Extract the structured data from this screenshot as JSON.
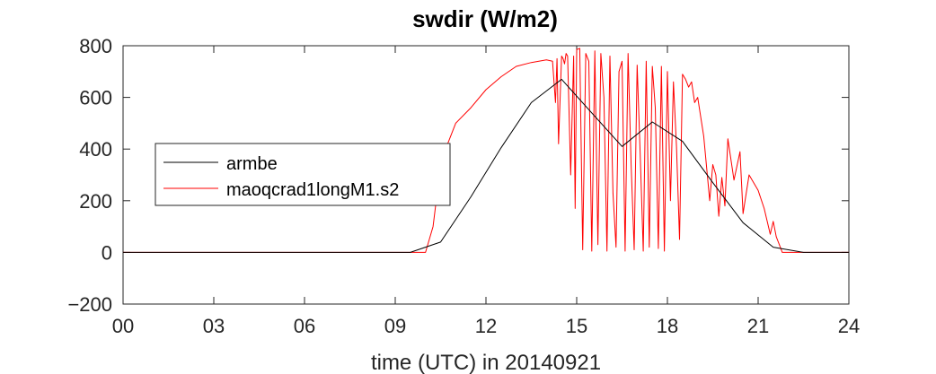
{
  "chart_data": {
    "type": "line",
    "title": "swdir  (W/m2)",
    "xlabel": "time (UTC) in 20140921",
    "ylabel": "",
    "xlim": [
      0,
      24
    ],
    "ylim": [
      -200,
      800
    ],
    "x_ticks": [
      "00",
      "03",
      "06",
      "09",
      "12",
      "15",
      "18",
      "21",
      "24"
    ],
    "y_ticks": [
      "-200",
      "0",
      "200",
      "400",
      "600",
      "800"
    ],
    "grid": false,
    "legend_position": "left",
    "series": [
      {
        "name": "armbe",
        "color": "#000000",
        "x": [
          0,
          1,
          2,
          3,
          4,
          5,
          6,
          7,
          8,
          9,
          9.5,
          10.5,
          11.5,
          12.5,
          13.5,
          14.5,
          15.5,
          16.5,
          17.5,
          18.5,
          19.5,
          20.5,
          21.5,
          22.5,
          23.5,
          24
        ],
        "y": [
          0,
          0,
          0,
          0,
          0,
          0,
          0,
          0,
          0,
          0,
          0,
          40,
          215,
          405,
          580,
          670,
          540,
          410,
          505,
          430,
          270,
          115,
          20,
          0,
          0,
          0
        ]
      },
      {
        "name": "maoqcrad1longM1.s2",
        "color": "#ff0000",
        "x": [
          0,
          9.5,
          10.0,
          10.25,
          10.45,
          10.7,
          11.0,
          11.5,
          12.0,
          12.5,
          13.0,
          13.5,
          14.0,
          14.2,
          14.3,
          14.35,
          14.4,
          14.5,
          14.55,
          14.6,
          14.65,
          14.7,
          14.8,
          14.9,
          14.95,
          15.0,
          15.1,
          15.2,
          15.3,
          15.4,
          15.5,
          15.6,
          15.7,
          15.8,
          15.9,
          16.0,
          16.1,
          16.2,
          16.3,
          16.4,
          16.5,
          16.6,
          16.7,
          16.8,
          16.9,
          17.0,
          17.1,
          17.2,
          17.3,
          17.4,
          17.5,
          17.6,
          17.7,
          17.8,
          17.9,
          18.0,
          18.1,
          18.2,
          18.3,
          18.4,
          18.5,
          18.6,
          18.7,
          18.8,
          18.9,
          19.0,
          19.2,
          19.4,
          19.5,
          19.6,
          19.7,
          19.8,
          19.9,
          20.0,
          20.2,
          20.4,
          20.5,
          20.7,
          21.0,
          21.2,
          21.4,
          21.5,
          21.6,
          21.7,
          21.8,
          22.0,
          22.5,
          24
        ],
        "y": [
          0,
          0,
          0,
          100,
          290,
          410,
          500,
          560,
          630,
          680,
          720,
          735,
          745,
          740,
          580,
          750,
          420,
          760,
          750,
          730,
          770,
          760,
          300,
          760,
          170,
          785,
          790,
          10,
          770,
          740,
          5,
          780,
          30,
          770,
          600,
          5,
          760,
          230,
          20,
          700,
          740,
          5,
          770,
          340,
          10,
          725,
          380,
          5,
          740,
          20,
          720,
          560,
          15,
          720,
          5,
          700,
          200,
          660,
          410,
          50,
          690,
          670,
          640,
          660,
          580,
          600,
          450,
          200,
          340,
          300,
          140,
          290,
          180,
          440,
          280,
          390,
          150,
          300,
          240,
          170,
          70,
          120,
          60,
          30,
          0,
          0,
          0,
          0
        ]
      }
    ]
  }
}
